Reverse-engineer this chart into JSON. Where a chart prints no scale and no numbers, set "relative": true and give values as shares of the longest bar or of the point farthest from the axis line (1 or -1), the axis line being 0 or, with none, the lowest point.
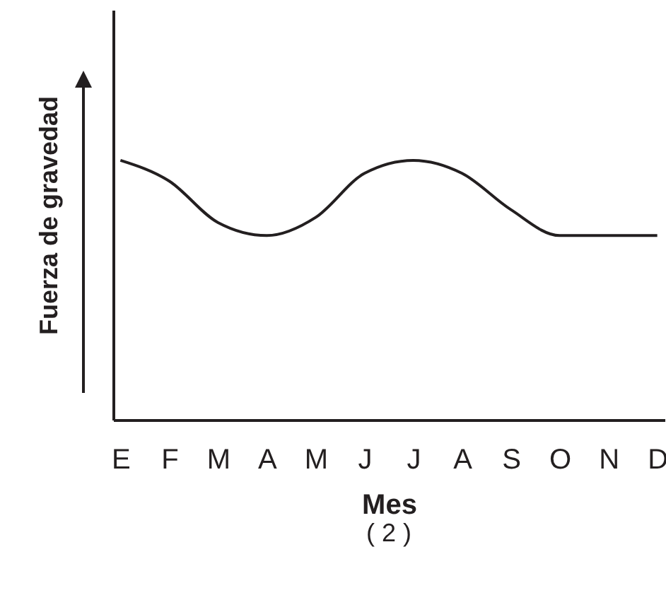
{
  "chart_data": {
    "type": "line",
    "relative": true,
    "xlabel": "Mes",
    "ylabel": "Fuerza de gravedad",
    "annotations": [
      "( 2 )"
    ],
    "categories": [
      "E",
      "F",
      "M",
      "A",
      "M",
      "J",
      "J",
      "A",
      "S",
      "O",
      "N",
      "D"
    ],
    "series": [
      {
        "color": "#231f20",
        "values": [
          1.0,
          0.92,
          0.76,
          0.71,
          0.78,
          0.95,
          1.0,
          0.95,
          0.81,
          0.71,
          0.71,
          0.71
        ]
      }
    ],
    "grid": false,
    "marker": "none",
    "line_style": "solid"
  }
}
